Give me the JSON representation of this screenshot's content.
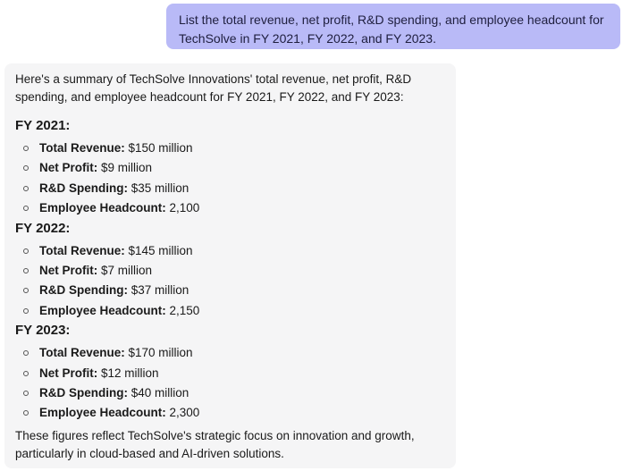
{
  "user_message": "List the total revenue, net profit, R&D spending, and employee headcount for TechSolve in FY 2021, FY 2022, and FY 2023.",
  "assistant": {
    "intro": "Here's a summary of TechSolve Innovations' total revenue, net profit, R&D spending, and employee headcount for FY 2021, FY 2022, and FY 2023:",
    "years": [
      {
        "heading": "FY 2021:",
        "metrics": [
          {
            "label": "Total Revenue:",
            "value": " $150 million"
          },
          {
            "label": "Net Profit:",
            "value": " $9 million"
          },
          {
            "label": "R&D Spending:",
            "value": " $35 million"
          },
          {
            "label": "Employee Headcount:",
            "value": " 2,100"
          }
        ]
      },
      {
        "heading": "FY 2022:",
        "metrics": [
          {
            "label": "Total Revenue:",
            "value": " $145 million"
          },
          {
            "label": "Net Profit:",
            "value": " $7 million"
          },
          {
            "label": "R&D Spending:",
            "value": " $37 million"
          },
          {
            "label": "Employee Headcount:",
            "value": " 2,150"
          }
        ]
      },
      {
        "heading": "FY 2023:",
        "metrics": [
          {
            "label": "Total Revenue:",
            "value": " $170 million"
          },
          {
            "label": "Net Profit:",
            "value": " $12 million"
          },
          {
            "label": "R&D Spending:",
            "value": " $40 million"
          },
          {
            "label": "Employee Headcount:",
            "value": " 2,300"
          }
        ]
      }
    ],
    "outro": "These figures reflect TechSolve's strategic focus on innovation and growth, particularly in cloud-based and AI-driven solutions."
  }
}
